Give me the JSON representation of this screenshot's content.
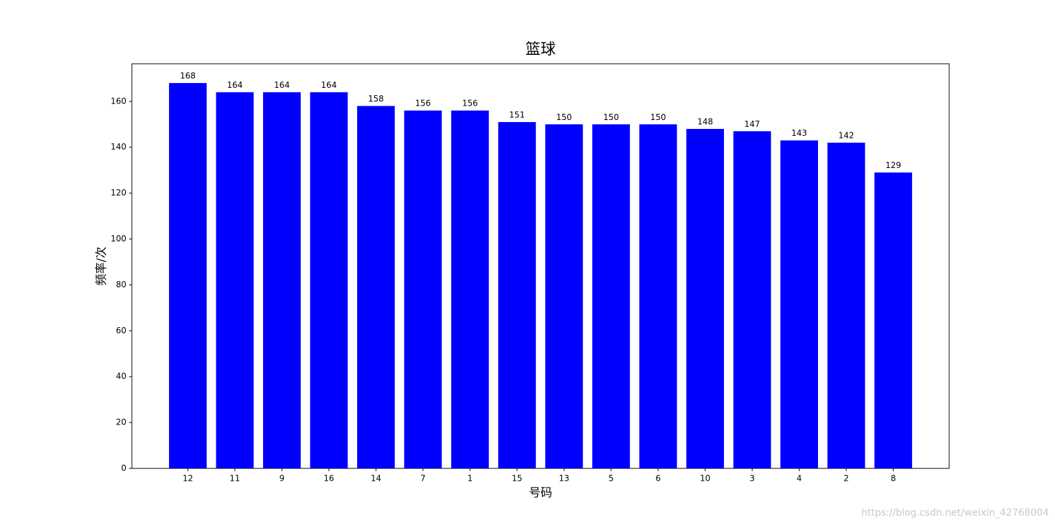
{
  "chart_data": {
    "type": "bar",
    "title": "篮球",
    "x_label": "号码",
    "y_label": "频率/次",
    "categories": [
      "12",
      "11",
      "9",
      "16",
      "14",
      "7",
      "1",
      "15",
      "13",
      "5",
      "6",
      "10",
      "3",
      "4",
      "2",
      "8"
    ],
    "values": [
      168,
      164,
      164,
      164,
      158,
      156,
      156,
      151,
      150,
      150,
      150,
      148,
      147,
      143,
      142,
      129
    ],
    "color": "#0000ff",
    "ylim": [
      0,
      176.4
    ],
    "yticks": [
      0,
      20,
      40,
      60,
      80,
      100,
      120,
      140,
      160
    ],
    "grid": false,
    "watermark": "https://blog.csdn.net/weixin_42768004"
  }
}
